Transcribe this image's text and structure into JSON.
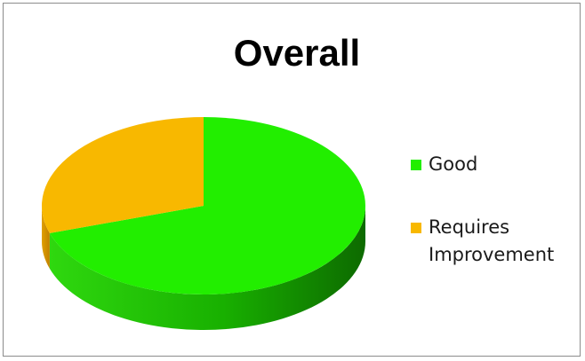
{
  "chart_data": {
    "type": "pie",
    "title": "Overall",
    "slices": [
      {
        "label": "Good",
        "value": 70,
        "color": "#22ee00",
        "side_color": "#18b800"
      },
      {
        "label": "Requires Improvement",
        "value": 30,
        "color": "#f8b800",
        "side_color": "#c89000"
      }
    ],
    "legend_placement": "right",
    "style": "3d"
  }
}
